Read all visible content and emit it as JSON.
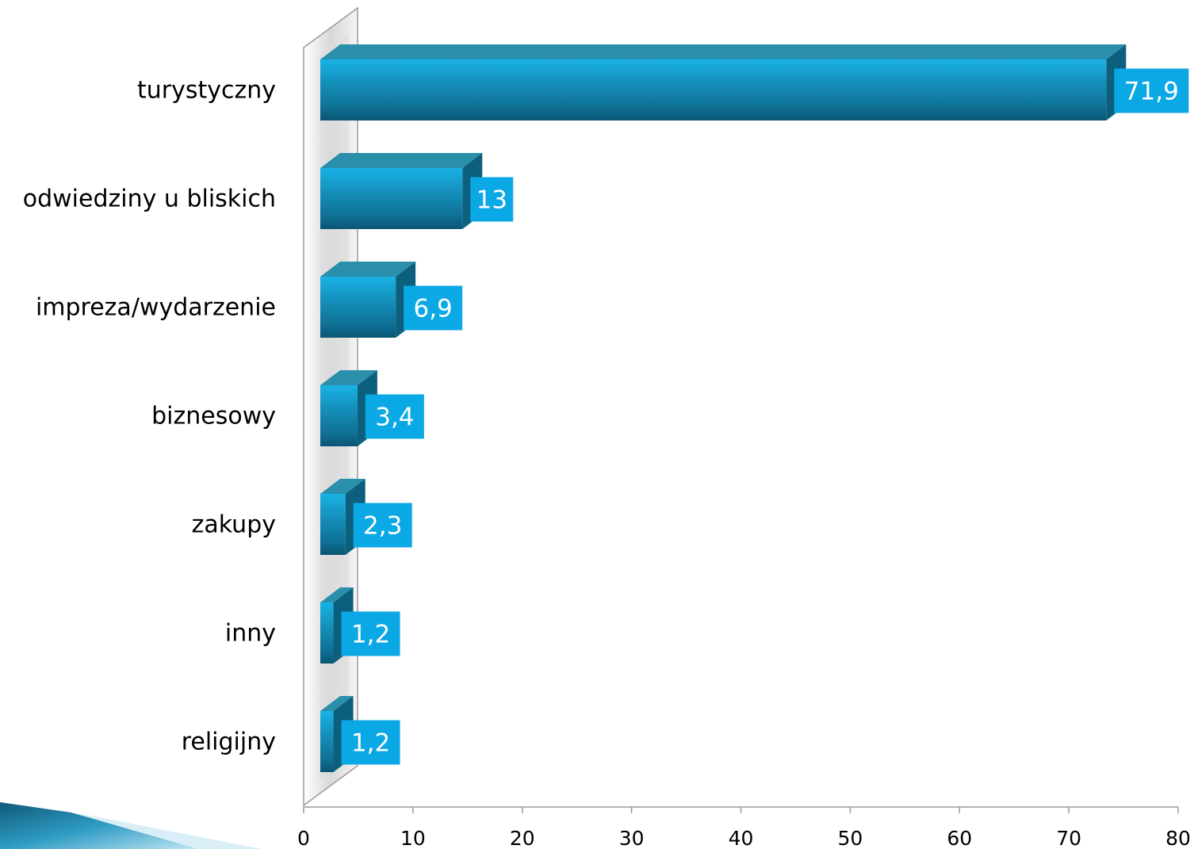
{
  "chart_data": {
    "type": "bar",
    "orientation": "horizontal",
    "categories": [
      "turystyczny",
      "odwiedziny u bliskich",
      "impreza/wydarzenie",
      "biznesowy",
      "zakupy",
      "inny",
      "religijny"
    ],
    "values": [
      71.9,
      13,
      6.9,
      3.4,
      2.3,
      1.2,
      1.2
    ],
    "value_labels": [
      "71,9",
      "13",
      "6,9",
      "3,4",
      "2,3",
      "1,2",
      "1,2"
    ],
    "xlim": [
      0,
      80
    ],
    "xticks": [
      0,
      10,
      20,
      30,
      40,
      50,
      60,
      70,
      80
    ],
    "grid": false,
    "style": "3d",
    "colors": {
      "bar_front": "#1f9fc8",
      "bar_top": "#2a8fab",
      "bar_side": "#0c5f7d",
      "label_box": "#0ba8e6"
    }
  }
}
